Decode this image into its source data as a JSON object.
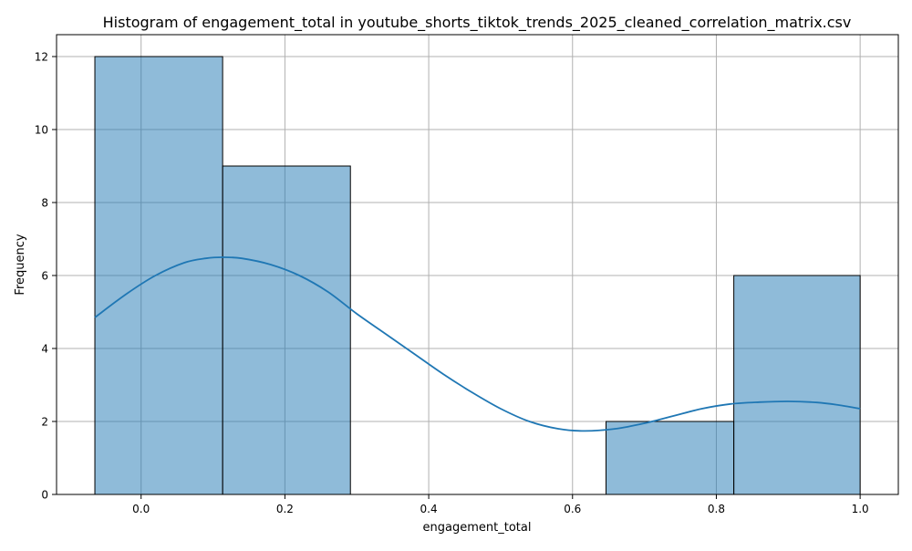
{
  "chart_data": {
    "type": "bar",
    "title": "Histogram of engagement_total in youtube_shorts_tiktok_trends_2025_cleaned_correlation_matrix.csv",
    "xlabel": "engagement_total",
    "ylabel": "Frequency",
    "xlim": [
      -0.1176,
      1.0531
    ],
    "ylim": [
      0,
      12.6
    ],
    "xticks": [
      0.0,
      0.2,
      0.4,
      0.6,
      0.8,
      1.0
    ],
    "xtick_labels": [
      "0.0",
      "0.2",
      "0.4",
      "0.6",
      "0.8",
      "1.0"
    ],
    "yticks": [
      0,
      2,
      4,
      6,
      8,
      10,
      12
    ],
    "ytick_labels": [
      "0",
      "2",
      "4",
      "6",
      "8",
      "10",
      "12"
    ],
    "grid": true,
    "bins": [
      {
        "start": -0.0643,
        "end": 0.1134,
        "count": 12
      },
      {
        "start": 0.1134,
        "end": 0.2911,
        "count": 9
      },
      {
        "start": 0.2911,
        "end": 0.4689,
        "count": 0
      },
      {
        "start": 0.4689,
        "end": 0.6466,
        "count": 0
      },
      {
        "start": 0.6466,
        "end": 0.8243,
        "count": 2
      },
      {
        "start": 0.8243,
        "end": 1.0,
        "count": 6
      }
    ],
    "kde": {
      "x": [
        -0.0643,
        -0.02,
        0.02,
        0.06,
        0.09,
        0.1134,
        0.14,
        0.18,
        0.22,
        0.26,
        0.3,
        0.34,
        0.38,
        0.42,
        0.46,
        0.5,
        0.54,
        0.58,
        0.617,
        0.66,
        0.7,
        0.74,
        0.78,
        0.82,
        0.86,
        0.9,
        0.94,
        0.97,
        1.0
      ],
      "y": [
        4.85,
        5.5,
        6.0,
        6.35,
        6.47,
        6.5,
        6.47,
        6.3,
        6.0,
        5.55,
        4.95,
        4.4,
        3.85,
        3.3,
        2.8,
        2.35,
        2.0,
        1.8,
        1.74,
        1.8,
        1.95,
        2.15,
        2.35,
        2.48,
        2.53,
        2.55,
        2.52,
        2.45,
        2.35
      ]
    },
    "colors": {
      "bar_fill": "#1f77b4",
      "bar_edge": "#000000",
      "kde_line": "#1f77b4",
      "grid": "#b0b0b0"
    }
  }
}
